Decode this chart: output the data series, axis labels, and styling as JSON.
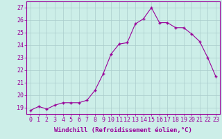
{
  "x": [
    0,
    1,
    2,
    3,
    4,
    5,
    6,
    7,
    8,
    9,
    10,
    11,
    12,
    13,
    14,
    15,
    16,
    17,
    18,
    19,
    20,
    21,
    22,
    23
  ],
  "y": [
    18.8,
    19.1,
    18.9,
    19.2,
    19.4,
    19.4,
    19.4,
    19.6,
    20.4,
    21.7,
    23.3,
    24.1,
    24.2,
    25.7,
    26.1,
    27.0,
    25.8,
    25.8,
    25.4,
    25.4,
    24.9,
    24.3,
    23.0,
    21.5
  ],
  "line_color": "#990099",
  "marker_color": "#990099",
  "bg_color": "#cceee8",
  "grid_color": "#aacccc",
  "xlabel": "Windchill (Refroidissement éolien,°C)",
  "ylabel_ticks": [
    19,
    20,
    21,
    22,
    23,
    24,
    25,
    26,
    27
  ],
  "xlim": [
    -0.5,
    23.5
  ],
  "ylim": [
    18.5,
    27.5
  ],
  "label_fontsize": 6.5,
  "tick_fontsize": 6
}
